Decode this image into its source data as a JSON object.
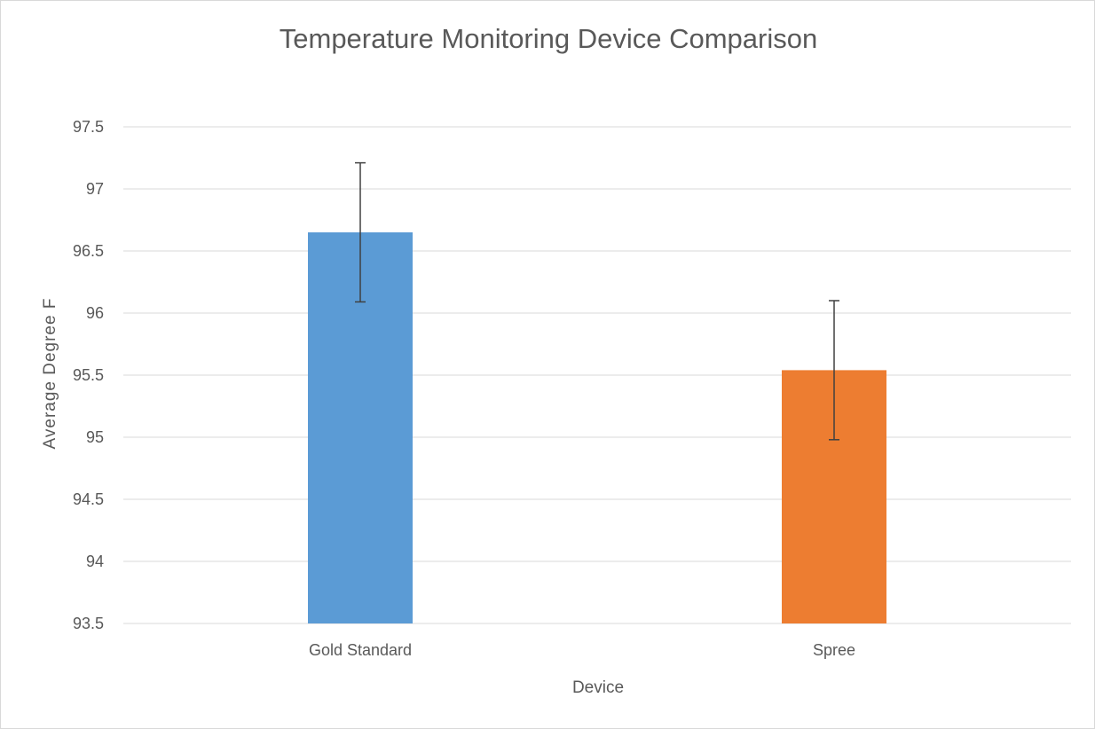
{
  "chart_data": {
    "type": "bar",
    "title": "Temperature Monitoring Device Comparison",
    "xlabel": "Device",
    "ylabel": "Average Degree F",
    "categories": [
      "Gold Standard",
      "Spree"
    ],
    "values": [
      96.65,
      95.54
    ],
    "error": [
      0.56,
      0.56
    ],
    "colors": [
      "#5B9BD5",
      "#ED7D31"
    ],
    "ylim": [
      93.5,
      97.5
    ],
    "yticks": [
      "93.5",
      "94",
      "94.5",
      "95",
      "95.5",
      "96",
      "96.5",
      "97",
      "97.5"
    ],
    "grid": true,
    "legend": "none"
  }
}
